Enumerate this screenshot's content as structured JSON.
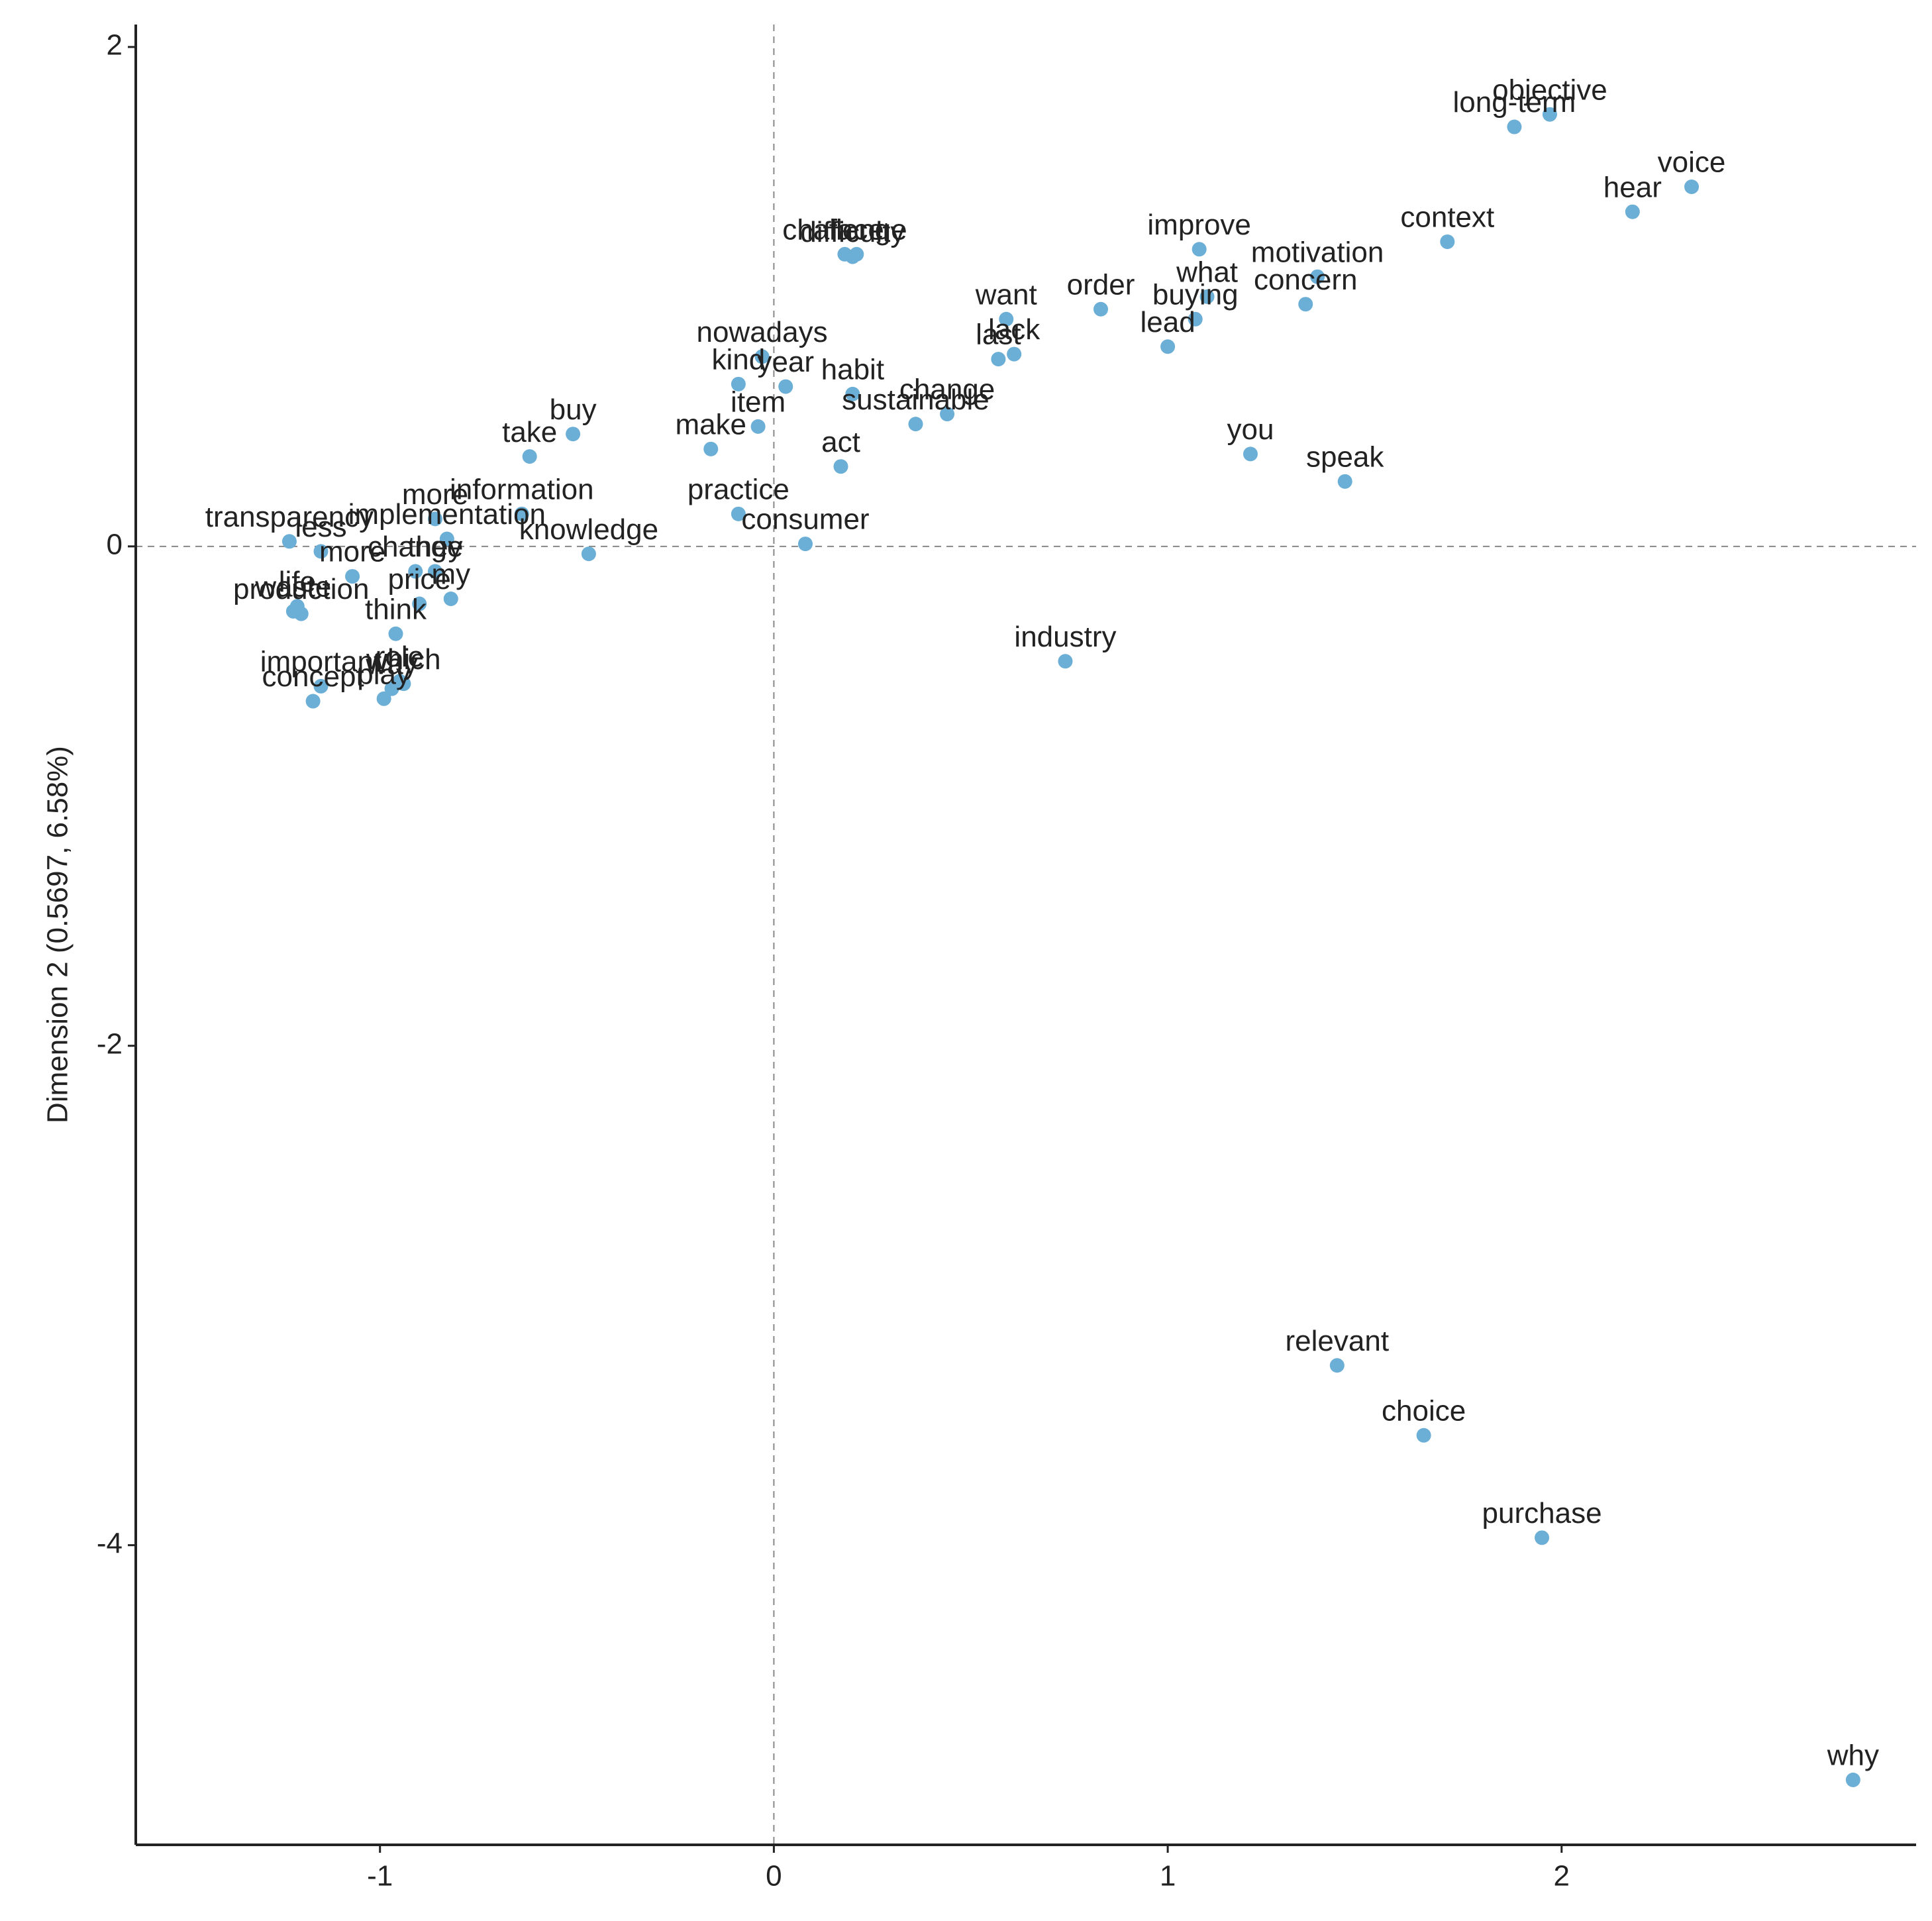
{
  "chart_data": {
    "type": "scatter",
    "y_label": "Dimension 2 (0.5697, 6.58%)",
    "color": "#6baed6",
    "xlim": [
      -1.62,
      2.9
    ],
    "ylim": [
      -5.2,
      2.09
    ],
    "xticks": [
      -1,
      0,
      1,
      2
    ],
    "yticks": [
      -4,
      -2,
      0,
      2
    ],
    "zero_lines": true,
    "labels": [
      "objective",
      "long-term",
      "voice",
      "hear",
      "context",
      "improve",
      "motivation",
      "what",
      "order",
      "concern",
      "buying",
      "want",
      "lead",
      "last",
      "lack",
      "challenge",
      "face",
      "difficulty",
      "nowadays",
      "year",
      "kind",
      "item",
      "habit",
      "change",
      "sustainable",
      "make",
      "act",
      "practice",
      "you",
      "speak",
      "take",
      "buy",
      "information",
      "more",
      "knowledge",
      "consumer",
      "implementation",
      "transparency",
      "less",
      "waste",
      "more",
      "they",
      "my",
      "price",
      "change",
      "think",
      "life",
      "important",
      "concept",
      "production",
      "role",
      "play",
      "way",
      "which",
      "industry",
      "relevant",
      "choice",
      "purchase",
      "why"
    ],
    "x": [
      1.97,
      1.88,
      2.33,
      2.18,
      1.71,
      1.08,
      1.38,
      1.1,
      0.83,
      1.35,
      1.07,
      0.59,
      1.0,
      0.57,
      0.61,
      0.18,
      0.21,
      0.2,
      -0.03,
      0.03,
      -0.09,
      -0.04,
      0.2,
      0.44,
      0.36,
      -0.16,
      0.17,
      -0.09,
      1.21,
      1.45,
      -0.62,
      -0.51,
      -0.64,
      -0.86,
      -0.47,
      0.08,
      -0.83,
      -1.23,
      -1.15,
      -1.22,
      -1.07,
      -0.86,
      -0.82,
      -0.9,
      -0.91,
      -0.96,
      -1.21,
      -1.15,
      -1.17,
      -1.2,
      -0.95,
      -0.99,
      -0.97,
      -0.94,
      0.74,
      1.43,
      1.65,
      1.95,
      2.74
    ],
    "values": [
      1.73,
      1.68,
      1.44,
      1.34,
      1.22,
      1.19,
      1.08,
      1.0,
      0.95,
      0.97,
      0.91,
      0.91,
      0.8,
      0.75,
      0.77,
      1.17,
      1.17,
      1.16,
      0.76,
      0.64,
      0.65,
      0.48,
      0.61,
      0.53,
      0.49,
      0.39,
      0.32,
      0.13,
      0.37,
      0.26,
      0.36,
      0.45,
      0.13,
      0.11,
      -0.03,
      0.01,
      0.03,
      0.02,
      -0.02,
      -0.26,
      -0.12,
      -0.1,
      -0.21,
      -0.23,
      -0.1,
      -0.35,
      -0.24,
      -0.56,
      -0.62,
      -0.27,
      -0.54,
      -0.61,
      -0.57,
      -0.55,
      -0.46,
      -3.28,
      -3.56,
      -3.97,
      -4.94
    ]
  }
}
